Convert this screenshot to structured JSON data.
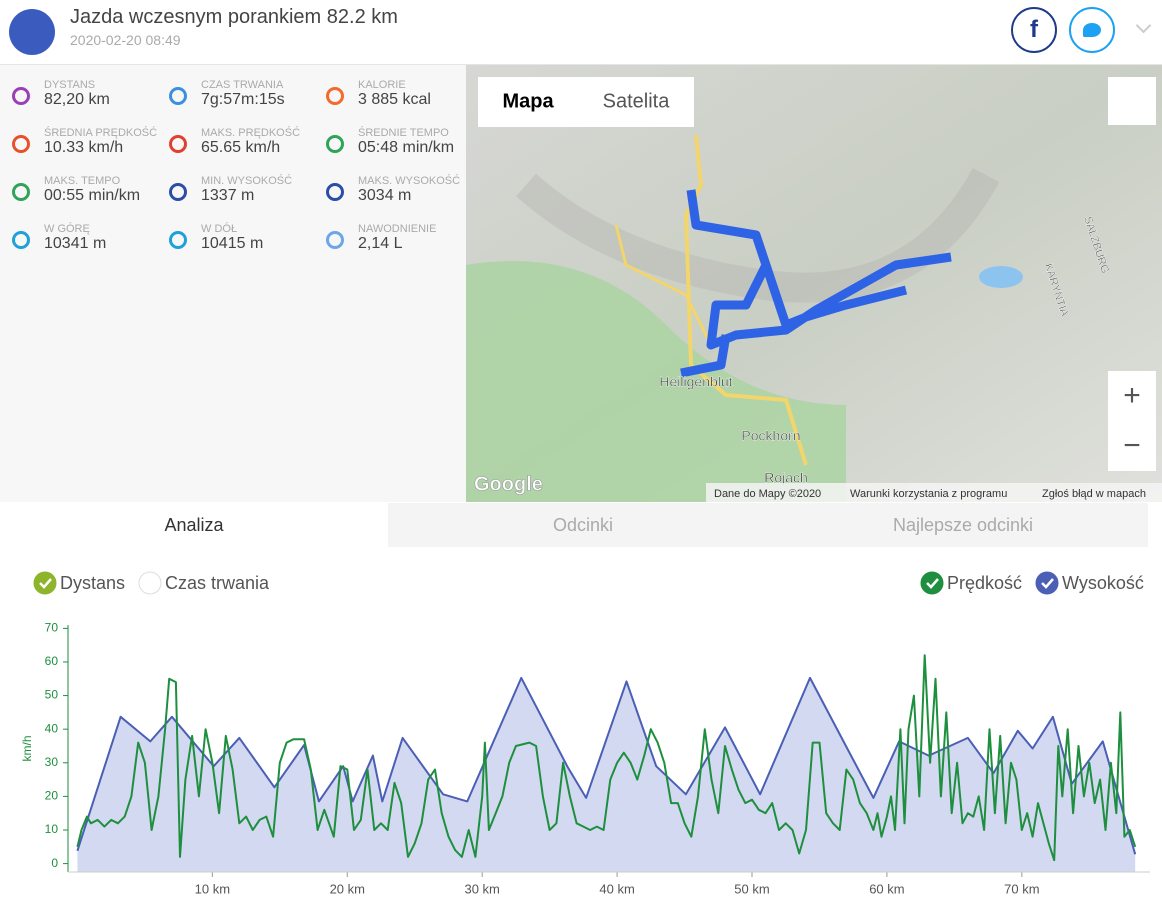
{
  "header": {
    "title": "Jazda wczesnym porankiem 82.2 km",
    "date": "2020-02-20 08:49"
  },
  "stats": [
    {
      "label": "DYSTANS",
      "value": "82,20 km"
    },
    {
      "label": "CZAS TRWANIA",
      "value": "7g:57m:15s"
    },
    {
      "label": "KALORIE",
      "value": "3 885 kcal"
    },
    {
      "label": "ŚREDNIA PRĘDKOŚĆ",
      "value": "10.33 km/h"
    },
    {
      "label": "MAKS. PRĘDKOŚĆ",
      "value": "65.65 km/h"
    },
    {
      "label": "ŚREDNIE TEMPO",
      "value": "05:48 min/km"
    },
    {
      "label": "MAKS. TEMPO",
      "value": "00:55 min/km"
    },
    {
      "label": "MIN. WYSOKOŚĆ",
      "value": "1337 m"
    },
    {
      "label": "MAKS. WYSOKOŚĆ",
      "value": "3034 m"
    },
    {
      "label": "W GÓRĘ",
      "value": "10341 m"
    },
    {
      "label": "W DÓŁ",
      "value": "10415 m"
    },
    {
      "label": "NAWODNIENIE",
      "value": "2,14 L"
    }
  ],
  "map": {
    "tabs": [
      "Mapa",
      "Satelita"
    ],
    "zoom_in": "+",
    "zoom_out": "−",
    "logo": "Google",
    "places": [
      "Heiligenblut",
      "Pockhorn",
      "Rojach",
      "KARYNTIA",
      "SALZBURG"
    ],
    "attribution": [
      "Dane do Mapy ©2020",
      "Warunki korzystania z programu",
      "Zgłoś błąd w mapach"
    ]
  },
  "tabs": [
    "Analiza",
    "Odcinki",
    "Najlepsze odcinki"
  ],
  "chart_data": {
    "type": "line",
    "toggles": [
      {
        "name": "Dystans",
        "checked": true,
        "color": "#8db42b"
      },
      {
        "name": "Czas trwania",
        "checked": false,
        "color": "#8db42b"
      }
    ],
    "ylabel": "km/h",
    "xlim": [
      -0.7,
      79.5
    ],
    "xticks": [
      {
        "value": 10,
        "label": "10 km"
      },
      {
        "value": 20,
        "label": "20 km"
      },
      {
        "value": 30,
        "label": "30 km"
      },
      {
        "value": 40,
        "label": "40 km"
      },
      {
        "value": 50,
        "label": "50 km"
      },
      {
        "value": 60,
        "label": "60 km"
      },
      {
        "value": 70,
        "label": "70 km"
      }
    ],
    "ylim": [
      -2.5,
      71
    ],
    "yticks": [
      0,
      10,
      20,
      30,
      40,
      50,
      60,
      70
    ],
    "y2lim": [
      1167,
      3543
    ],
    "series": [
      {
        "name": "Prędkość",
        "color": "#1e8f3e",
        "axis": "y",
        "x": [
          0,
          0.3,
          0.7,
          1,
          1.5,
          2,
          2.5,
          3,
          3.5,
          4,
          4.5,
          5,
          5.5,
          6,
          6.5,
          6.8,
          7.3,
          7.6,
          8,
          8.5,
          9,
          9.5,
          10,
          10.5,
          11,
          11.5,
          12,
          12.5,
          13,
          13.5,
          14,
          14.5,
          15,
          15.5,
          16,
          16.8,
          17.3,
          17.8,
          18.3,
          19,
          19.5,
          20,
          20.5,
          21,
          21.5,
          22,
          22.5,
          23,
          23.5,
          24,
          24.5,
          25,
          25.5,
          26,
          26.5,
          27,
          27.5,
          28,
          28.5,
          29,
          29.5,
          30,
          30.2,
          30.5,
          31,
          31.5,
          32,
          32.5,
          33.5,
          34,
          34.5,
          35,
          35.5,
          36,
          36.5,
          37,
          37.5,
          38,
          38.5,
          39,
          39.5,
          40,
          40.5,
          41,
          41.5,
          42,
          42.5,
          43,
          43.5,
          44,
          44.5,
          45,
          45.5,
          46,
          46.5,
          47,
          47.5,
          48,
          48.5,
          49,
          49.5,
          50,
          50.5,
          51,
          51.5,
          52,
          52.5,
          53,
          53.5,
          54,
          54.5,
          55,
          55.5,
          56,
          56.5,
          57,
          57.5,
          58,
          58.5,
          59,
          59.3,
          59.6,
          60,
          60.3,
          60.6,
          61,
          61.3,
          61.6,
          62,
          62.4,
          62.8,
          63.2,
          63.6,
          64,
          64.4,
          64.8,
          65.2,
          65.6,
          66,
          66.4,
          66.8,
          67.2,
          67.6,
          68,
          68.4,
          68.8,
          69.2,
          69.6,
          70,
          70.4,
          70.8,
          71.2,
          71.6,
          72,
          72.4,
          72.7,
          73,
          73.4,
          73.8,
          74.2,
          74.6,
          75,
          75.4,
          75.8,
          76.2,
          76.6,
          77,
          77.3,
          77.6,
          78,
          78.4
        ],
        "values": [
          5,
          10,
          14,
          12,
          13,
          11,
          13,
          12,
          14,
          20,
          36,
          30,
          10,
          20,
          40,
          55,
          54,
          2,
          25,
          38,
          20,
          40,
          30,
          15,
          38,
          28,
          12,
          14,
          10,
          13,
          14,
          8,
          30,
          36,
          37,
          37,
          28,
          10,
          16,
          8,
          29,
          28,
          10,
          13,
          28,
          10,
          12,
          10,
          24,
          18,
          2,
          6,
          12,
          25,
          28,
          15,
          8,
          4,
          2,
          10,
          2,
          20,
          36,
          10,
          15,
          20,
          30,
          35,
          36,
          35,
          20,
          10,
          12,
          30,
          20,
          12,
          11,
          10,
          11,
          10,
          25,
          30,
          33,
          30,
          25,
          32,
          40,
          36,
          30,
          18,
          18,
          12,
          8,
          20,
          40,
          25,
          15,
          35,
          28,
          22,
          18,
          19,
          16,
          15,
          18,
          10,
          12,
          10,
          3,
          10,
          36,
          36,
          15,
          12,
          10,
          28,
          25,
          18,
          15,
          10,
          15,
          8,
          14,
          20,
          10,
          40,
          12,
          40,
          50,
          20,
          62,
          30,
          55,
          20,
          45,
          15,
          30,
          12,
          15,
          14,
          20,
          10,
          40,
          15,
          38,
          12,
          30,
          25,
          10,
          15,
          8,
          18,
          12,
          6,
          1,
          35,
          20,
          40,
          15,
          35,
          20,
          30,
          18,
          25,
          10,
          30,
          15,
          45,
          8,
          10,
          5
        ]
      },
      {
        "name": "Wysokość",
        "color": "#4a5fb5",
        "fill": "#d3d9f0",
        "axis": "y2",
        "x": [
          0,
          3.2,
          5.4,
          7,
          10.1,
          12,
          14.6,
          16.8,
          17.9,
          19.7,
          20.4,
          21.9,
          22.6,
          24.1,
          27.1,
          28.9,
          32.9,
          36.3,
          37.7,
          40.7,
          42.9,
          45.1,
          48,
          50.6,
          54.3,
          57.2,
          59,
          60.9,
          63.1,
          66,
          67.9,
          69.7,
          70.8,
          72.3,
          73.7,
          76,
          78.4
        ],
        "values": [
          1371,
          2660,
          2423,
          2660,
          2185,
          2457,
          1982,
          2389,
          1846,
          2185,
          1846,
          2287,
          1846,
          2457,
          1914,
          1846,
          3034,
          2185,
          1880,
          3000,
          2185,
          1914,
          2558,
          1914,
          3034,
          2321,
          1880,
          2423,
          2287,
          2457,
          2117,
          2525,
          2355,
          2660,
          2015,
          2423,
          1337
        ]
      }
    ]
  }
}
